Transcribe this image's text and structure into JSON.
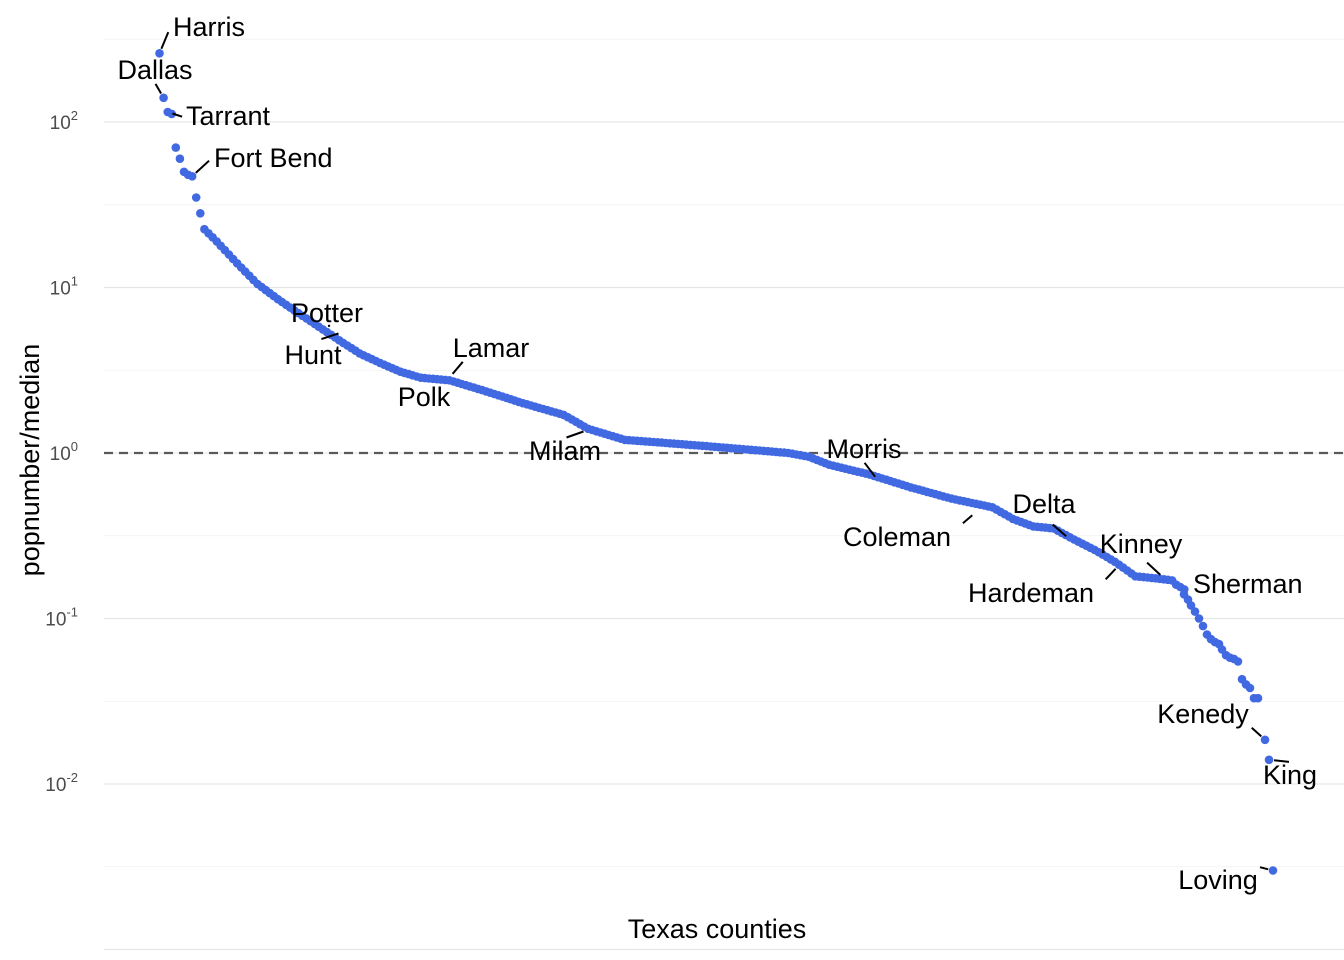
{
  "chart_data": {
    "type": "scatter",
    "xlabel": "Texas counties",
    "ylabel": "popnumber/median",
    "y_scale": "log10",
    "ylim": [
      0.0022,
      400
    ],
    "y_ticks": [
      {
        "value": 100,
        "base": "10",
        "exp": "2"
      },
      {
        "value": 10,
        "base": "10",
        "exp": "1"
      },
      {
        "value": 1,
        "base": "10",
        "exp": "0"
      },
      {
        "value": 0.1,
        "base": "10",
        "exp": "-1"
      },
      {
        "value": 0.01,
        "base": "10",
        "exp": "-2"
      }
    ],
    "reference_line": {
      "y": 1,
      "style": "dashed"
    },
    "n_points": 254,
    "grid": "major and minor horizontal",
    "point_color": "#4169e1",
    "curve_knots": [
      [
        1,
        260
      ],
      [
        2,
        140
      ],
      [
        3,
        115
      ],
      [
        4,
        112
      ],
      [
        5,
        70
      ],
      [
        6,
        60
      ],
      [
        7,
        50
      ],
      [
        8,
        48
      ],
      [
        9,
        47
      ],
      [
        10,
        35
      ],
      [
        12,
        22.5
      ],
      [
        15,
        19
      ],
      [
        20,
        14
      ],
      [
        25,
        10.5
      ],
      [
        30,
        8.5
      ],
      [
        35,
        7
      ],
      [
        40,
        5.8
      ],
      [
        45,
        4.8
      ],
      [
        50,
        4.0
      ],
      [
        55,
        3.5
      ],
      [
        60,
        3.1
      ],
      [
        65,
        2.85
      ],
      [
        72,
        2.75
      ],
      [
        80,
        2.4
      ],
      [
        90,
        2.0
      ],
      [
        100,
        1.7
      ],
      [
        106,
        1.4
      ],
      [
        115,
        1.2
      ],
      [
        125,
        1.15
      ],
      [
        135,
        1.1
      ],
      [
        145,
        1.05
      ],
      [
        155,
        1.0
      ],
      [
        160,
        0.95
      ],
      [
        165,
        0.85
      ],
      [
        175,
        0.74
      ],
      [
        185,
        0.62
      ],
      [
        195,
        0.53
      ],
      [
        205,
        0.47
      ],
      [
        210,
        0.4
      ],
      [
        215,
        0.36
      ],
      [
        220,
        0.35
      ],
      [
        225,
        0.3
      ],
      [
        230,
        0.26
      ],
      [
        235,
        0.22
      ],
      [
        240,
        0.18
      ],
      [
        245,
        0.175
      ],
      [
        249,
        0.17
      ],
      [
        250,
        0.16
      ],
      [
        252,
        0.15
      ]
    ],
    "tail_points": [
      [
        1184,
        0.14
      ],
      [
        1188,
        0.13
      ],
      [
        1191,
        0.12
      ],
      [
        1195,
        0.11
      ],
      [
        1199,
        0.1
      ],
      [
        1203,
        0.09
      ],
      [
        1207,
        0.08
      ],
      [
        1211,
        0.075
      ],
      [
        1215,
        0.072
      ],
      [
        1219,
        0.07
      ],
      [
        1222,
        0.065
      ],
      [
        1226,
        0.06
      ],
      [
        1230,
        0.058
      ],
      [
        1234,
        0.057
      ],
      [
        1238,
        0.055
      ],
      [
        1242,
        0.043
      ],
      [
        1246,
        0.04
      ],
      [
        1250,
        0.038
      ],
      [
        1254,
        0.033
      ],
      [
        1258,
        0.033
      ],
      [
        1265,
        0.0185
      ],
      [
        1269,
        0.014
      ],
      [
        1273,
        0.003
      ]
    ],
    "labels": [
      {
        "text": "Harris",
        "point": [
          1,
          260
        ],
        "text_pos": [
          173,
          36
        ],
        "anchor": "start"
      },
      {
        "text": "Dallas",
        "point": [
          2,
          140
        ],
        "text_pos": [
          155,
          79
        ],
        "anchor": "middle"
      },
      {
        "text": "Tarrant",
        "point": [
          3,
          115
        ],
        "text_pos": [
          186,
          125
        ],
        "anchor": "start"
      },
      {
        "text": "Fort Bend",
        "point": [
          9,
          47
        ],
        "text_pos": [
          214,
          167
        ],
        "anchor": "start"
      },
      {
        "text": "Potter",
        "point": [
          44,
          5.9
        ],
        "text_pos": [
          327,
          322
        ],
        "anchor": "middle"
      },
      {
        "text": "Hunt",
        "point": [
          46,
          5.4
        ],
        "text_pos": [
          313,
          364
        ],
        "anchor": "middle"
      },
      {
        "text": "Lamar",
        "point": [
          72,
          2.85
        ],
        "text_pos": [
          491,
          357
        ],
        "anchor": "middle"
      },
      {
        "text": "Polk",
        "point": [
          66,
          2.7
        ],
        "text_pos": [
          424,
          406
        ],
        "anchor": "middle"
      },
      {
        "text": "Milam",
        "point": [
          106,
          1.38
        ],
        "text_pos": [
          565,
          460
        ],
        "anchor": "middle"
      },
      {
        "text": "Morris",
        "point": [
          177,
          0.68
        ],
        "text_pos": [
          864,
          458
        ],
        "anchor": "middle"
      },
      {
        "text": "Coleman",
        "point": [
          201,
          0.44
        ],
        "text_pos": [
          897,
          546
        ],
        "anchor": "middle"
      },
      {
        "text": "Delta",
        "point": [
          224,
          0.3
        ],
        "text_pos": [
          1044,
          513
        ],
        "anchor": "middle"
      },
      {
        "text": "Kinney",
        "point": [
          247,
          0.175
        ],
        "text_pos": [
          1141,
          553
        ],
        "anchor": "middle"
      },
      {
        "text": "Hardeman",
        "point": [
          236,
          0.21
        ],
        "text_pos": [
          1031,
          602
        ],
        "anchor": "middle"
      },
      {
        "text": "Sherman",
        "point": [
          252,
          0.15
        ],
        "text_pos": [
          1193,
          593
        ],
        "anchor": "start"
      },
      {
        "text": "Kenedy",
        "point": [
          1265,
          0.0185
        ],
        "text_pos": [
          1203,
          723
        ],
        "anchor": "middle"
      },
      {
        "text": "King",
        "point": [
          1269,
          0.014
        ],
        "text_pos": [
          1290,
          784
        ],
        "anchor": "middle"
      },
      {
        "text": "Loving",
        "point": [
          1273,
          0.003
        ],
        "text_pos": [
          1218,
          889
        ],
        "anchor": "middle"
      }
    ]
  }
}
